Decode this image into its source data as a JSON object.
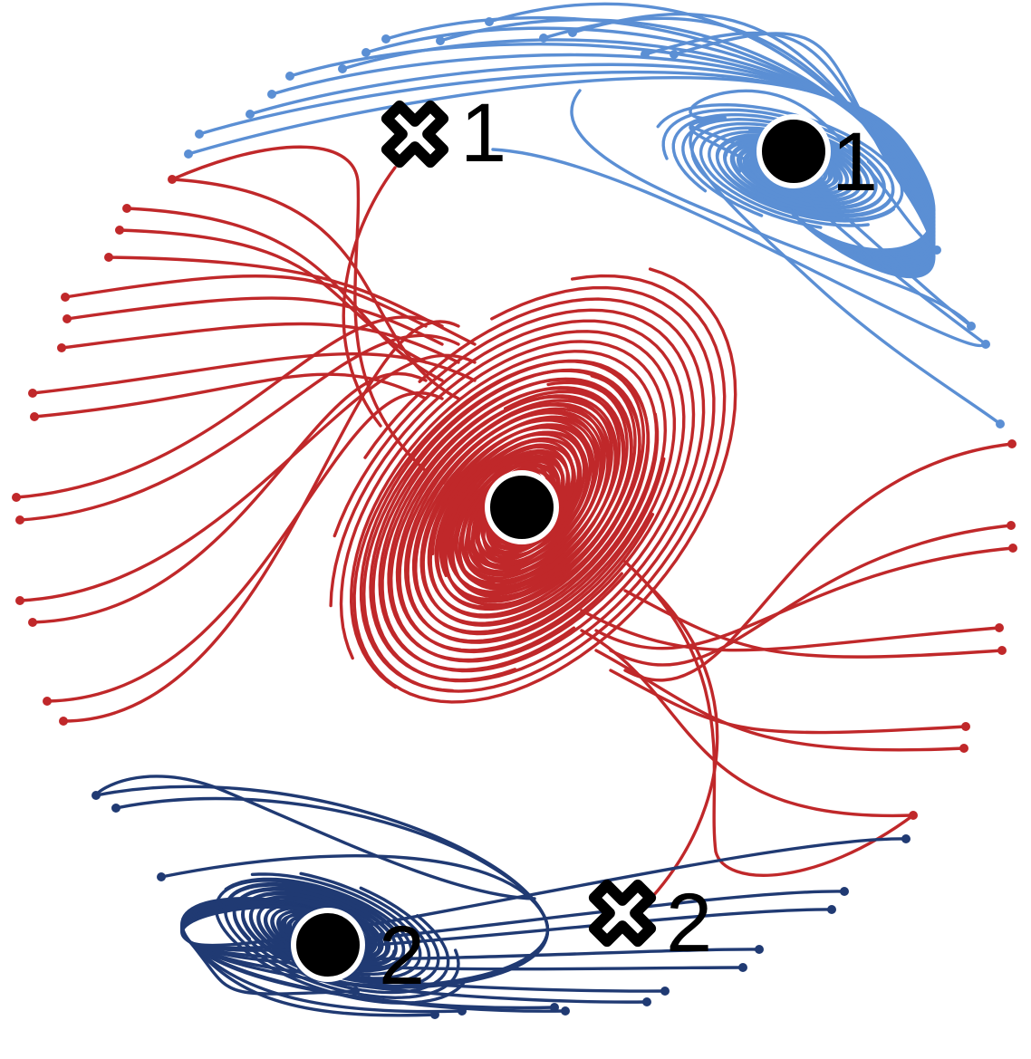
{
  "colors": {
    "upper_basin": "#5b8fd4",
    "center_basin": "#c0282a",
    "lower_basin": "#203a73",
    "marker": "#000000",
    "marker_outline": "#ffffff"
  },
  "markers": {
    "attractor_1_label": "1",
    "attractor_2_label": "2",
    "saddle_1_label": "1",
    "saddle_2_label": "2"
  }
}
